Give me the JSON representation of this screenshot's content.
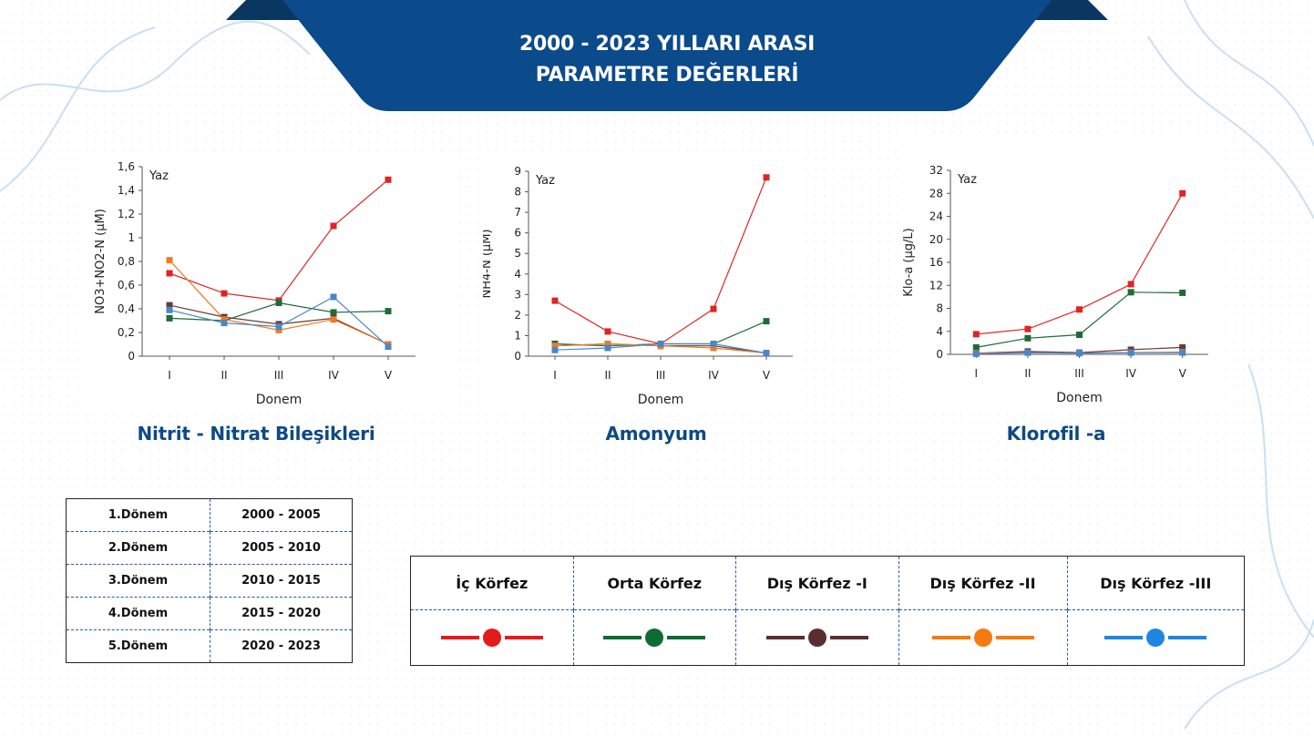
{
  "banner": {
    "line1": "2000 - 2023 YILLARI ARASI",
    "line2": "PARAMETRE DEĞERLERİ",
    "color": "#0b4a8b"
  },
  "chart_data": [
    {
      "type": "line",
      "title": "Nitrit - Nitrat Bileşikleri",
      "annotation": "Yaz",
      "xlabel": "Donem",
      "ylabel": "NO3+NO2-N (µM)",
      "categories": [
        "I",
        "II",
        "III",
        "IV",
        "V"
      ],
      "ylim": [
        0,
        1.6
      ],
      "yticks": [
        "0",
        "0,2",
        "0,4",
        "0,6",
        "0,8",
        "1",
        "1,2",
        "1,4",
        "1,6"
      ],
      "series": [
        {
          "name": "İç Körfez",
          "color": "#e02424",
          "values": [
            0.7,
            0.53,
            0.47,
            1.1,
            1.49
          ]
        },
        {
          "name": "Orta Körfez",
          "color": "#1e6b3a",
          "values": [
            0.32,
            0.3,
            0.45,
            0.37,
            0.38
          ]
        },
        {
          "name": "Dış Körfez -I",
          "color": "#6b3a34",
          "values": [
            0.43,
            0.33,
            0.27,
            0.32,
            0.1
          ]
        },
        {
          "name": "Dış Körfez -II",
          "color": "#f07a20",
          "values": [
            0.81,
            0.31,
            0.22,
            0.31,
            0.1
          ]
        },
        {
          "name": "Dış Körfez -III",
          "color": "#4a86c8",
          "values": [
            0.39,
            0.28,
            0.25,
            0.5,
            0.08
          ]
        }
      ]
    },
    {
      "type": "line",
      "title": "Amonyum",
      "annotation": "Yaz",
      "xlabel": "Donem",
      "ylabel": "NH4-N (µM)",
      "categories": [
        "I",
        "II",
        "III",
        "IV",
        "V"
      ],
      "ylim": [
        0,
        9
      ],
      "yticks": [
        "0",
        "1",
        "2",
        "3",
        "4",
        "5",
        "6",
        "7",
        "8",
        "9"
      ],
      "series": [
        {
          "name": "İç Körfez",
          "color": "#e02424",
          "values": [
            2.7,
            1.2,
            0.6,
            2.3,
            8.7
          ]
        },
        {
          "name": "Orta Körfez",
          "color": "#1e6b3a",
          "values": [
            0.6,
            0.5,
            0.6,
            0.6,
            1.7
          ]
        },
        {
          "name": "Dış Körfez -I",
          "color": "#6b3a34",
          "values": [
            0.5,
            0.6,
            0.5,
            0.5,
            0.15
          ]
        },
        {
          "name": "Dış Körfez -II",
          "color": "#f07a20",
          "values": [
            0.5,
            0.6,
            0.5,
            0.4,
            0.15
          ]
        },
        {
          "name": "Dış Körfez -III",
          "color": "#4a86c8",
          "values": [
            0.3,
            0.4,
            0.6,
            0.6,
            0.15
          ]
        }
      ]
    },
    {
      "type": "line",
      "title": "Klorofil -a",
      "annotation": "Yaz",
      "xlabel": "Donem",
      "ylabel": "Klo-a (µg/L)",
      "categories": [
        "I",
        "II",
        "III",
        "IV",
        "V"
      ],
      "ylim": [
        0,
        32
      ],
      "yticks": [
        "0",
        "4",
        "8",
        "12",
        "16",
        "20",
        "24",
        "28",
        "32"
      ],
      "series": [
        {
          "name": "İç Körfez",
          "color": "#e02424",
          "values": [
            3.5,
            4.4,
            7.8,
            12.2,
            28.0
          ]
        },
        {
          "name": "Orta Körfez",
          "color": "#1e6b3a",
          "values": [
            1.2,
            2.8,
            3.4,
            10.8,
            10.7
          ]
        },
        {
          "name": "Dış Körfez -I",
          "color": "#6b3a34",
          "values": [
            0.2,
            0.5,
            0.3,
            0.8,
            1.2
          ]
        },
        {
          "name": "Dış Körfez -II",
          "color": "#f07a20",
          "values": [
            0.2,
            0.3,
            0.2,
            0.3,
            0.4
          ]
        },
        {
          "name": "Dış Körfez -III",
          "color": "#4a86c8",
          "values": [
            0.1,
            0.3,
            0.2,
            0.3,
            0.3
          ]
        }
      ]
    }
  ],
  "periods": [
    {
      "label": "1.Dönem",
      "range": "2000 - 2005"
    },
    {
      "label": "2.Dönem",
      "range": "2005 - 2010"
    },
    {
      "label": "3.Dönem",
      "range": "2010 - 2015"
    },
    {
      "label": "4.Dönem",
      "range": "2015 - 2020"
    },
    {
      "label": "5.Dönem",
      "range": "2020 - 2023"
    }
  ],
  "legend": [
    {
      "name": "İç Körfez",
      "color": "#e31b1b"
    },
    {
      "name": "Orta Körfez",
      "color": "#0f6b34"
    },
    {
      "name": "Dış Körfez -I",
      "color": "#5a2e2e"
    },
    {
      "name": "Dış Körfez -II",
      "color": "#f57a10"
    },
    {
      "name": "Dış Körfez -III",
      "color": "#1f86e0"
    }
  ]
}
